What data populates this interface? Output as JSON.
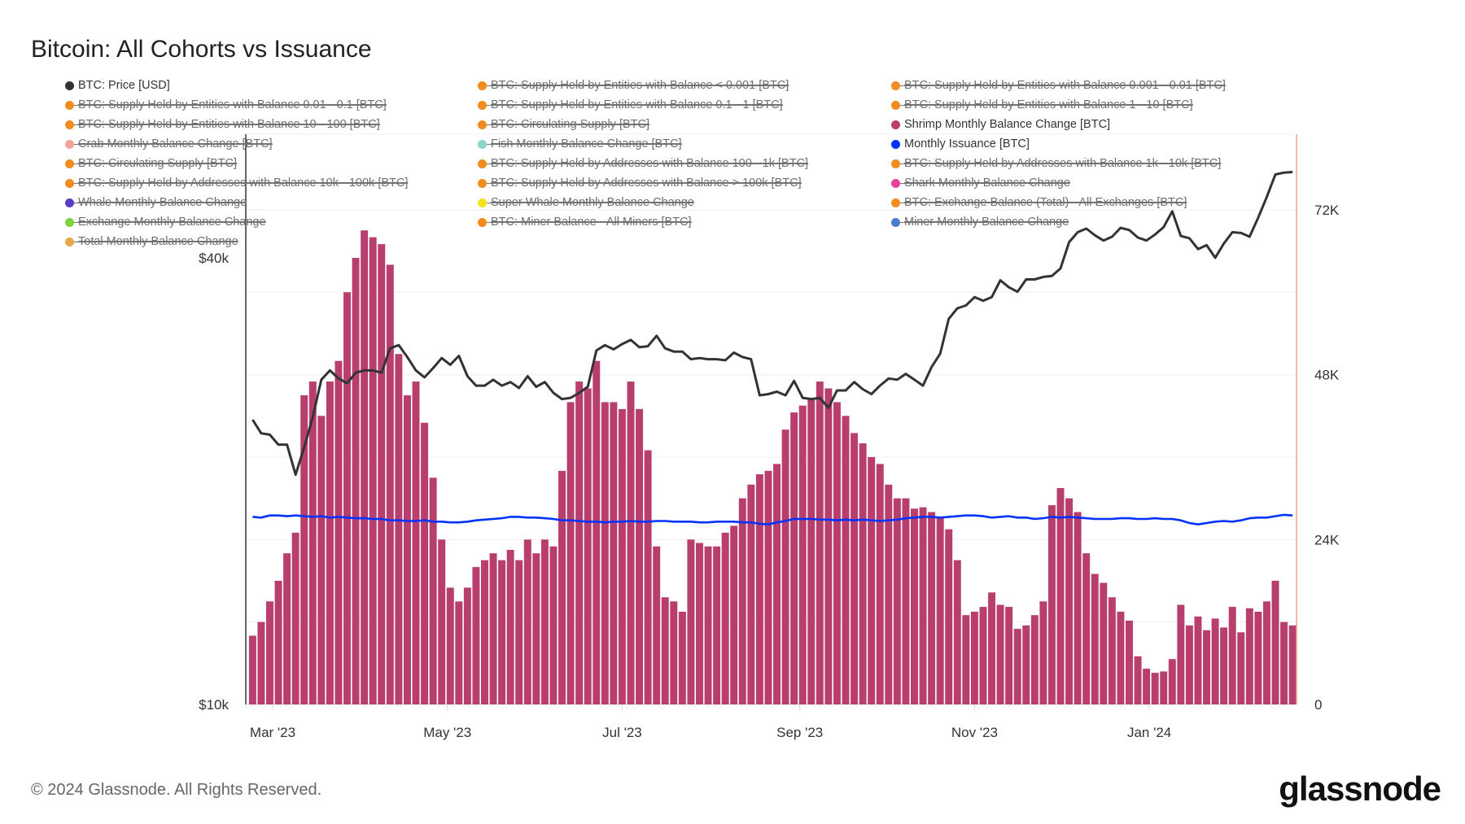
{
  "title": "Bitcoin: All Cohorts vs Issuance",
  "footer": "© 2024 Glassnode. All Rights Reserved.",
  "logo_text": "glassnode",
  "chart_data": {
    "type": "bar",
    "title": "Bitcoin: All Cohorts vs Issuance",
    "x_ticks": [
      {
        "date": "2023-03-01",
        "label": "Mar '23"
      },
      {
        "date": "2023-05-01",
        "label": "May '23"
      },
      {
        "date": "2023-07-01",
        "label": "Jul '23"
      },
      {
        "date": "2023-09-01",
        "label": "Sep '23"
      },
      {
        "date": "2023-11-01",
        "label": "Nov '23"
      },
      {
        "date": "2024-01-01",
        "label": "Jan '24"
      }
    ],
    "x_range": [
      "2023-02-20",
      "2024-02-21"
    ],
    "left_axis": {
      "scale": "log",
      "ylim": [
        10000,
        58700
      ],
      "ticks": [
        {
          "value": 40000,
          "label": "$40k"
        },
        {
          "value": 10000,
          "label": "$10k"
        }
      ]
    },
    "right_axis": {
      "scale": "linear",
      "ylim": [
        0,
        83000
      ],
      "ticks": [
        {
          "value": 72000,
          "label": "72K"
        },
        {
          "value": 48000,
          "label": "48K"
        },
        {
          "value": 24000,
          "label": "24K"
        },
        {
          "value": 0,
          "label": "0"
        }
      ],
      "grid_step": 12000
    },
    "grid": true,
    "legend_placement": "top",
    "legend": [
      {
        "label": "BTC: Price [USD]",
        "color": "#333333",
        "hidden": false
      },
      {
        "label": "BTC: Supply Held by Entities with Balance < 0.001 [BTC]",
        "color": "#f28c1e",
        "hidden": true
      },
      {
        "label": "BTC: Supply Held by Entities with Balance 0.001 - 0.01 [BTC]",
        "color": "#f28c1e",
        "hidden": true
      },
      {
        "label": "BTC: Supply Held by Entities with Balance 0.01 - 0.1 [BTC]",
        "color": "#f28c1e",
        "hidden": true
      },
      {
        "label": "BTC: Supply Held by Entities with Balance 0.1 - 1 [BTC]",
        "color": "#f28c1e",
        "hidden": true
      },
      {
        "label": "BTC: Supply Held by Entities with Balance 1 - 10 [BTC]",
        "color": "#f28c1e",
        "hidden": true
      },
      {
        "label": "BTC: Supply Held by Entities with Balance 10 - 100 [BTC]",
        "color": "#f28c1e",
        "hidden": true
      },
      {
        "label": "BTC: Circulating Supply [BTC]",
        "color": "#f28c1e",
        "hidden": true
      },
      {
        "label": "Shrimp Monthly Balance Change [BTC]",
        "color": "#b83e6e",
        "hidden": false
      },
      {
        "label": "Crab Monthly Balance Change [BTC]",
        "color": "#f2a398",
        "hidden": true
      },
      {
        "label": "Fish Monthly Balance Change [BTC]",
        "color": "#8dd3c7",
        "hidden": true
      },
      {
        "label": "Monthly Issuance [BTC]",
        "color": "#0033ff",
        "hidden": false
      },
      {
        "label": "BTC: Circulating Supply [BTC]",
        "color": "#f28c1e",
        "hidden": true
      },
      {
        "label": "BTC: Supply Held by Addresses with Balance 100 - 1k [BTC]",
        "color": "#f28c1e",
        "hidden": true
      },
      {
        "label": "BTC: Supply Held by Addresses with Balance 1k - 10k [BTC]",
        "color": "#f28c1e",
        "hidden": true
      },
      {
        "label": "BTC: Supply Held by Addresses with Balance 10k - 100k [BTC]",
        "color": "#f28c1e",
        "hidden": true
      },
      {
        "label": "BTC: Supply Held by Addresses with Balance > 100k [BTC]",
        "color": "#f28c1e",
        "hidden": true
      },
      {
        "label": "Shark Monthly Balance Change",
        "color": "#e8409a",
        "hidden": true
      },
      {
        "label": "Whale Monthly Balance Change",
        "color": "#5a3cc4",
        "hidden": true
      },
      {
        "label": "Super Whale Monthly Balance Change",
        "color": "#f3e21c",
        "hidden": true
      },
      {
        "label": "BTC: Exchange Balance (Total) - All Exchanges [BTC]",
        "color": "#f28c1e",
        "hidden": true
      },
      {
        "label": "Exchange Monthly Balance Change",
        "color": "#7fd33c",
        "hidden": true
      },
      {
        "label": "BTC: Miner Balance - All Miners [BTC]",
        "color": "#f28c1e",
        "hidden": true
      },
      {
        "label": "Miner Monthly Balance Change",
        "color": "#4a7ccf",
        "hidden": true
      },
      {
        "label": "Total Monthly Balance Change",
        "color": "#eaa84a",
        "hidden": true
      }
    ],
    "x": [
      "2023-02-22",
      "2023-02-25",
      "2023-02-28",
      "2023-03-03",
      "2023-03-06",
      "2023-03-09",
      "2023-03-12",
      "2023-03-15",
      "2023-03-18",
      "2023-03-21",
      "2023-03-24",
      "2023-03-27",
      "2023-03-30",
      "2023-04-02",
      "2023-04-05",
      "2023-04-08",
      "2023-04-11",
      "2023-04-14",
      "2023-04-17",
      "2023-04-20",
      "2023-04-23",
      "2023-04-26",
      "2023-04-29",
      "2023-05-02",
      "2023-05-05",
      "2023-05-08",
      "2023-05-11",
      "2023-05-14",
      "2023-05-17",
      "2023-05-20",
      "2023-05-23",
      "2023-05-26",
      "2023-05-29",
      "2023-06-01",
      "2023-06-04",
      "2023-06-07",
      "2023-06-10",
      "2023-06-13",
      "2023-06-16",
      "2023-06-19",
      "2023-06-22",
      "2023-06-25",
      "2023-06-28",
      "2023-07-01",
      "2023-07-04",
      "2023-07-07",
      "2023-07-10",
      "2023-07-13",
      "2023-07-16",
      "2023-07-19",
      "2023-07-22",
      "2023-07-25",
      "2023-07-28",
      "2023-07-31",
      "2023-08-03",
      "2023-08-06",
      "2023-08-09",
      "2023-08-12",
      "2023-08-15",
      "2023-08-18",
      "2023-08-21",
      "2023-08-24",
      "2023-08-27",
      "2023-08-30",
      "2023-09-02",
      "2023-09-05",
      "2023-09-08",
      "2023-09-11",
      "2023-09-14",
      "2023-09-17",
      "2023-09-20",
      "2023-09-23",
      "2023-09-26",
      "2023-09-29",
      "2023-10-02",
      "2023-10-05",
      "2023-10-08",
      "2023-10-11",
      "2023-10-14",
      "2023-10-17",
      "2023-10-20",
      "2023-10-23",
      "2023-10-26",
      "2023-10-29",
      "2023-11-01",
      "2023-11-04",
      "2023-11-07",
      "2023-11-10",
      "2023-11-13",
      "2023-11-16",
      "2023-11-19",
      "2023-11-22",
      "2023-11-25",
      "2023-11-28",
      "2023-12-01",
      "2023-12-04",
      "2023-12-07",
      "2023-12-10",
      "2023-12-13",
      "2023-12-16",
      "2023-12-19",
      "2023-12-22",
      "2023-12-25",
      "2023-12-28",
      "2023-12-31",
      "2024-01-03",
      "2024-01-06",
      "2024-01-09",
      "2024-01-12",
      "2024-01-15",
      "2024-01-18",
      "2024-01-21",
      "2024-01-24",
      "2024-01-27",
      "2024-01-30",
      "2024-02-02",
      "2024-02-05",
      "2024-02-08",
      "2024-02-11",
      "2024-02-14",
      "2024-02-17",
      "2024-02-20"
    ],
    "series": [
      {
        "name": "Shrimp Monthly Balance Change [BTC]",
        "type": "bar",
        "axis": "right",
        "color": "#b83e6e",
        "values": [
          10000,
          12000,
          15000,
          18000,
          22000,
          25000,
          45000,
          47000,
          42000,
          47000,
          50000,
          60000,
          65000,
          69000,
          68000,
          67000,
          64000,
          51000,
          45000,
          47000,
          41000,
          33000,
          24000,
          17000,
          15000,
          17000,
          20000,
          21000,
          22000,
          21000,
          22500,
          21000,
          24000,
          22000,
          24000,
          23000,
          34000,
          44000,
          47000,
          46000,
          50000,
          44000,
          44000,
          43000,
          47000,
          43000,
          37000,
          23000,
          15600,
          15000,
          13500,
          24000,
          23500,
          23000,
          23000,
          25000,
          26000,
          30000,
          32000,
          33500,
          34000,
          35000,
          40000,
          42500,
          43500,
          44500,
          47000,
          46000,
          44000,
          42000,
          39500,
          38000,
          36000,
          35000,
          32000,
          30000,
          30000,
          28500,
          28700,
          28000,
          27300,
          25500,
          21000,
          13000,
          13500,
          14200,
          16300,
          14500,
          14200,
          11000,
          11500,
          13000,
          15000,
          29000,
          31500,
          30000,
          28000,
          22000,
          19000,
          17700,
          15600,
          13500,
          12200,
          7000,
          5200,
          4600,
          4800,
          6600,
          14500,
          11500,
          12800,
          10800,
          12500,
          11200,
          14200,
          10500,
          14000,
          13500,
          15000,
          18000,
          12000,
          11500
        ]
      },
      {
        "name": "Monthly Issuance [BTC]",
        "type": "line",
        "axis": "right",
        "color": "#0033ff",
        "values": [
          27300,
          27200,
          27500,
          27500,
          27400,
          27500,
          27400,
          27300,
          27400,
          27200,
          27300,
          27200,
          27100,
          27100,
          27000,
          27000,
          26800,
          26800,
          26700,
          26700,
          26800,
          26600,
          26600,
          26500,
          26500,
          26600,
          26800,
          26900,
          27000,
          27100,
          27300,
          27300,
          27200,
          27200,
          27100,
          27000,
          26800,
          26800,
          26700,
          26600,
          26600,
          26500,
          26600,
          26600,
          26700,
          26600,
          26600,
          26700,
          26700,
          26600,
          26600,
          26600,
          26500,
          26500,
          26600,
          26600,
          26600,
          26500,
          26500,
          26300,
          26200,
          26500,
          26700,
          27000,
          27000,
          27000,
          26900,
          26900,
          26800,
          26900,
          26800,
          26900,
          26800,
          26700,
          26800,
          26900,
          27100,
          27200,
          27300,
          27300,
          27200,
          27300,
          27400,
          27500,
          27500,
          27400,
          27200,
          27300,
          27400,
          27200,
          27200,
          27000,
          27100,
          27300,
          27200,
          27300,
          27200,
          27100,
          27000,
          27000,
          27000,
          27100,
          27100,
          27000,
          27000,
          27100,
          27000,
          27000,
          26800,
          26400,
          26200,
          26400,
          26600,
          26700,
          26600,
          26800,
          27100,
          27200,
          27200,
          27400,
          27600,
          27500
        ]
      },
      {
        "name": "BTC: Price [USD]",
        "type": "line",
        "axis": "left",
        "color": "#333333",
        "values": [
          24200,
          23200,
          23100,
          22400,
          22400,
          20400,
          22200,
          24400,
          27400,
          28200,
          27500,
          27100,
          28000,
          28200,
          28200,
          28000,
          30200,
          30500,
          29400,
          28200,
          27600,
          28400,
          29300,
          28700,
          29500,
          27700,
          26900,
          26900,
          27400,
          26900,
          27200,
          26700,
          27700,
          26800,
          27200,
          26300,
          25800,
          25900,
          26300,
          26800,
          30000,
          30500,
          30100,
          30600,
          31000,
          30300,
          30400,
          31400,
          30200,
          29900,
          29900,
          29200,
          29300,
          29200,
          29200,
          29100,
          29800,
          29400,
          29200,
          26100,
          26200,
          26400,
          26100,
          27300,
          25900,
          25800,
          25900,
          25100,
          26500,
          26500,
          27200,
          26600,
          26200,
          26900,
          27500,
          27400,
          27900,
          27400,
          26900,
          28500,
          29700,
          33100,
          34200,
          34500,
          35400,
          35000,
          35400,
          37300,
          36500,
          36000,
          37400,
          37400,
          37700,
          37800,
          38700,
          42000,
          43300,
          43800,
          42900,
          42200,
          42700,
          43900,
          43600,
          42600,
          42200,
          43000,
          44000,
          46200,
          42800,
          42500,
          41100,
          41600,
          40000,
          41800,
          43300,
          43200,
          42700,
          45300,
          48300,
          51800,
          52100,
          52200
        ]
      }
    ]
  }
}
